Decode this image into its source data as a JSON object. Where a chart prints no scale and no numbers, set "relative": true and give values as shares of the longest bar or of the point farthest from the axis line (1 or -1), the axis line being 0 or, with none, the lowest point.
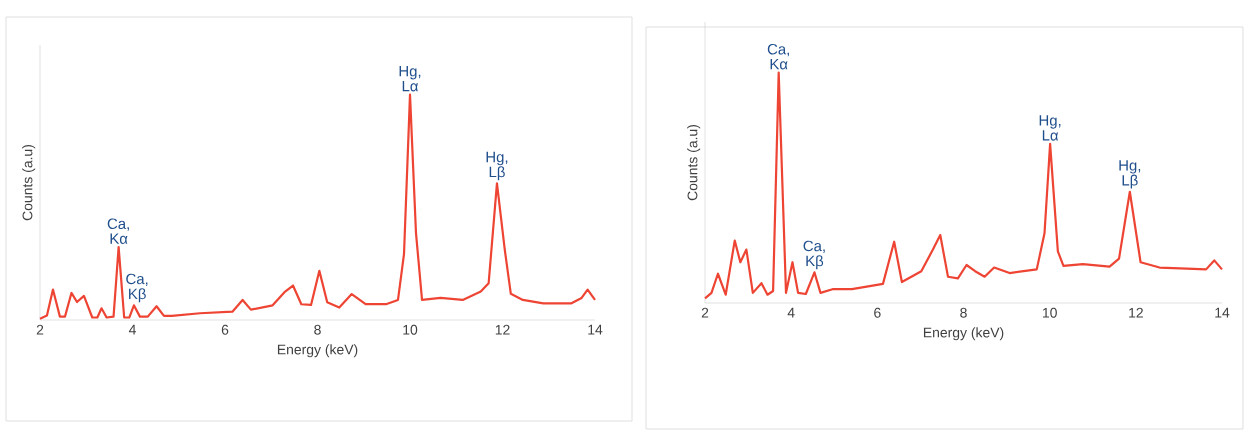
{
  "chart_data": [
    {
      "type": "line",
      "xlabel": "Energy (keV)",
      "ylabel": "Counts (a.u)",
      "relative": true,
      "xlim": [
        2,
        14
      ],
      "xticks": [
        2,
        4,
        6,
        8,
        10,
        12,
        14
      ],
      "color": "#ee4433",
      "x": [
        2.0,
        2.15,
        2.28,
        2.43,
        2.54,
        2.68,
        2.8,
        2.95,
        3.13,
        3.24,
        3.33,
        3.44,
        3.59,
        3.7,
        3.82,
        3.93,
        4.03,
        4.16,
        4.33,
        4.52,
        4.68,
        4.85,
        5.46,
        6.16,
        6.38,
        6.56,
        7.03,
        7.3,
        7.47,
        7.65,
        7.86,
        8.04,
        8.21,
        8.47,
        8.74,
        9.04,
        9.48,
        9.74,
        9.87,
        10.0,
        10.13,
        10.26,
        10.66,
        11.14,
        11.53,
        11.7,
        11.88,
        12.05,
        12.18,
        12.44,
        12.88,
        13.49,
        13.71,
        13.84,
        14.0
      ],
      "values": [
        0.006,
        0.02,
        0.135,
        0.015,
        0.015,
        0.12,
        0.08,
        0.107,
        0.011,
        0.011,
        0.052,
        0.011,
        0.015,
        0.323,
        0.011,
        0.011,
        0.065,
        0.015,
        0.015,
        0.061,
        0.018,
        0.018,
        0.03,
        0.037,
        0.089,
        0.046,
        0.065,
        0.126,
        0.153,
        0.07,
        0.067,
        0.218,
        0.079,
        0.055,
        0.115,
        0.07,
        0.07,
        0.089,
        0.292,
        1.0,
        0.384,
        0.089,
        0.098,
        0.089,
        0.126,
        0.163,
        0.606,
        0.31,
        0.116,
        0.089,
        0.074,
        0.074,
        0.098,
        0.135,
        0.089
      ],
      "annotations": [
        {
          "text": "Ca, Kα",
          "x": 3.7,
          "y": 0.323
        },
        {
          "text": "Ca, Kβ",
          "x": 4.1,
          "y": 0.065
        },
        {
          "text": "Hg, Lα",
          "x": 10.0,
          "y": 1.0
        },
        {
          "text": "Hg, Lβ",
          "x": 11.88,
          "y": 0.606
        }
      ]
    },
    {
      "type": "line",
      "xlabel": "Energy (keV)",
      "ylabel": "Counts (a.u)",
      "relative": true,
      "xlim": [
        2,
        14
      ],
      "xticks": [
        2,
        4,
        6,
        8,
        10,
        12,
        14
      ],
      "color": "#ee4433",
      "x": [
        2.0,
        2.15,
        2.3,
        2.48,
        2.69,
        2.82,
        2.96,
        3.11,
        3.31,
        3.45,
        3.58,
        3.71,
        3.88,
        4.03,
        4.16,
        4.34,
        4.54,
        4.68,
        4.96,
        5.41,
        6.13,
        6.39,
        6.57,
        7.02,
        7.29,
        7.46,
        7.64,
        7.87,
        8.07,
        8.27,
        8.49,
        8.71,
        9.07,
        9.7,
        9.88,
        10.01,
        10.19,
        10.32,
        10.77,
        11.39,
        11.61,
        11.86,
        12.11,
        12.55,
        13.18,
        13.63,
        13.82,
        14.0
      ],
      "values": [
        0.02,
        0.044,
        0.127,
        0.036,
        0.271,
        0.177,
        0.232,
        0.044,
        0.086,
        0.036,
        0.052,
        1.0,
        0.044,
        0.177,
        0.044,
        0.039,
        0.133,
        0.044,
        0.06,
        0.06,
        0.083,
        0.266,
        0.091,
        0.138,
        0.232,
        0.295,
        0.114,
        0.107,
        0.165,
        0.138,
        0.114,
        0.154,
        0.13,
        0.146,
        0.303,
        0.691,
        0.224,
        0.161,
        0.169,
        0.158,
        0.193,
        0.483,
        0.177,
        0.154,
        0.149,
        0.146,
        0.185,
        0.146
      ],
      "annotations": [
        {
          "text": "Ca, Kα",
          "x": 3.71,
          "y": 1.0
        },
        {
          "text": "Ca, Kβ",
          "x": 4.54,
          "y": 0.133
        },
        {
          "text": "Hg, Lα",
          "x": 10.01,
          "y": 0.691
        },
        {
          "text": "Hg, Lβ",
          "x": 11.86,
          "y": 0.483
        }
      ]
    }
  ]
}
